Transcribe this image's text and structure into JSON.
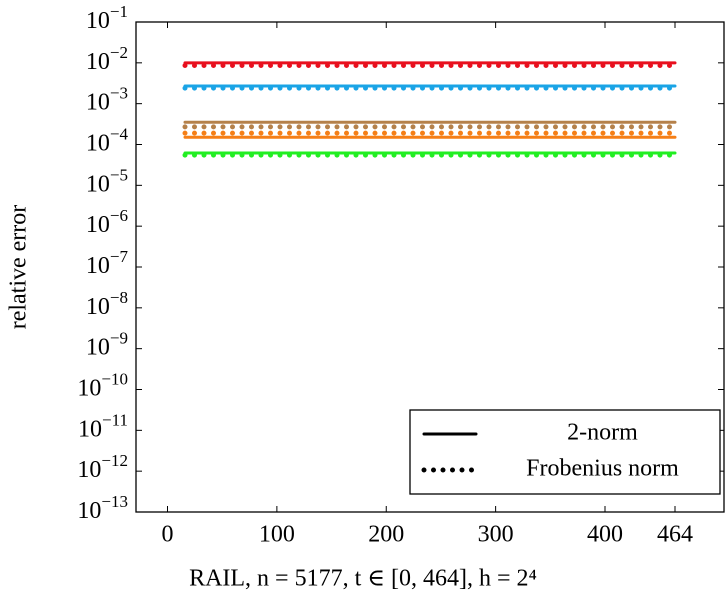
{
  "chart_data": {
    "type": "line",
    "x_label": "RAIL, n = 5177, t ∈ [0, 464], h = 2⁴",
    "y_label": "relative error",
    "log_y": true,
    "xlim": [
      -28.8,
      508.8
    ],
    "ylim": [
      1e-13,
      0.1
    ],
    "xticks": [
      0,
      100,
      200,
      300,
      400,
      464
    ],
    "yticks": [
      {
        "value": 0.1,
        "label": "10^−1"
      },
      {
        "value": 0.01,
        "label": "10^−2"
      },
      {
        "value": 0.001,
        "label": "10^−3"
      },
      {
        "value": 0.0001,
        "label": "10^−4"
      },
      {
        "value": 1e-05,
        "label": "10^−5"
      },
      {
        "value": 1e-06,
        "label": "10^−6"
      },
      {
        "value": 1e-07,
        "label": "10^−7"
      },
      {
        "value": 1e-08,
        "label": "10^−8"
      },
      {
        "value": 1e-09,
        "label": "10^−9"
      },
      {
        "value": 1e-10,
        "label": "10^−10"
      },
      {
        "value": 1e-11,
        "label": "10^−11"
      },
      {
        "value": 1e-12,
        "label": "10^−12"
      },
      {
        "value": 1e-13,
        "label": "10^−13"
      }
    ],
    "legend_position": "lower right",
    "legend": [
      {
        "label": "2-norm",
        "style": "solid"
      },
      {
        "label": "Frobenius norm",
        "style": "dotted"
      }
    ],
    "x": [
      16,
      32,
      48,
      64,
      80,
      96,
      112,
      128,
      144,
      160,
      176,
      192,
      208,
      224,
      240,
      256,
      272,
      288,
      304,
      320,
      336,
      352,
      368,
      384,
      400,
      416,
      432,
      448,
      464
    ],
    "series": [
      {
        "color": "#e8101e",
        "style": "solid",
        "values": [
          0.01,
          0.01,
          0.01,
          0.01,
          0.01,
          0.01,
          0.01,
          0.01,
          0.01,
          0.01,
          0.01,
          0.01,
          0.01,
          0.01,
          0.01,
          0.01,
          0.01,
          0.01,
          0.01,
          0.01,
          0.01,
          0.01,
          0.01,
          0.01,
          0.01,
          0.01,
          0.01,
          0.01,
          0.01
        ]
      },
      {
        "color": "#e8101e",
        "style": "dotted",
        "values": [
          0.0086,
          0.0086,
          0.0086,
          0.0086,
          0.0086,
          0.0086,
          0.0086,
          0.0086,
          0.0086,
          0.0086,
          0.0086,
          0.0086,
          0.0086,
          0.0086,
          0.0086,
          0.0086,
          0.0086,
          0.0086,
          0.0086,
          0.0086,
          0.0086,
          0.0086,
          0.0086,
          0.0086,
          0.0086,
          0.0086,
          0.0086,
          0.0086,
          0.0086
        ]
      },
      {
        "color": "#1aa4e6",
        "style": "solid",
        "values": [
          0.0027,
          0.0027,
          0.0027,
          0.0027,
          0.0027,
          0.0027,
          0.0027,
          0.0027,
          0.0027,
          0.0027,
          0.0027,
          0.0027,
          0.0027,
          0.0027,
          0.0027,
          0.0027,
          0.0027,
          0.0027,
          0.0027,
          0.0027,
          0.0027,
          0.0027,
          0.0027,
          0.0027,
          0.0027,
          0.0027,
          0.0027,
          0.0027,
          0.0027
        ]
      },
      {
        "color": "#1aa4e6",
        "style": "dotted",
        "values": [
          0.0024,
          0.0024,
          0.0024,
          0.0024,
          0.0024,
          0.0024,
          0.0024,
          0.0024,
          0.0024,
          0.0024,
          0.0024,
          0.0024,
          0.0024,
          0.0024,
          0.0024,
          0.0024,
          0.0024,
          0.0024,
          0.0024,
          0.0024,
          0.0024,
          0.0024,
          0.0024,
          0.0024,
          0.0024,
          0.0024,
          0.0024,
          0.0024,
          0.0024
        ]
      },
      {
        "color": "#b5814a",
        "style": "solid",
        "values": [
          0.00035,
          0.00035,
          0.00035,
          0.00035,
          0.00035,
          0.00035,
          0.00035,
          0.00035,
          0.00035,
          0.00035,
          0.00035,
          0.00035,
          0.00035,
          0.00035,
          0.00035,
          0.00035,
          0.00035,
          0.00035,
          0.00035,
          0.00035,
          0.00035,
          0.00035,
          0.00035,
          0.00035,
          0.00035,
          0.00035,
          0.00035,
          0.00035,
          0.00035
        ]
      },
      {
        "color": "#b5814a",
        "style": "dotted",
        "values": [
          0.00027,
          0.00027,
          0.00027,
          0.00027,
          0.00027,
          0.00027,
          0.00027,
          0.00027,
          0.00027,
          0.00027,
          0.00027,
          0.00027,
          0.00027,
          0.00027,
          0.00027,
          0.00027,
          0.00027,
          0.00027,
          0.00027,
          0.00027,
          0.00027,
          0.00027,
          0.00027,
          0.00027,
          0.00027,
          0.00027,
          0.00027,
          0.00027,
          0.00027
        ]
      },
      {
        "color": "#f57f17",
        "style": "solid",
        "values": [
          0.00015,
          0.00015,
          0.00015,
          0.00015,
          0.00015,
          0.00015,
          0.00015,
          0.00015,
          0.00015,
          0.00015,
          0.00015,
          0.00015,
          0.00015,
          0.00015,
          0.00015,
          0.00015,
          0.00015,
          0.00015,
          0.00015,
          0.00015,
          0.00015,
          0.00015,
          0.00015,
          0.00015,
          0.00015,
          0.00015,
          0.00015,
          0.00015,
          0.00015
        ]
      },
      {
        "color": "#f57f17",
        "style": "dotted",
        "values": [
          0.00019,
          0.00019,
          0.00019,
          0.00019,
          0.00019,
          0.00019,
          0.00019,
          0.00019,
          0.00019,
          0.00019,
          0.00019,
          0.00019,
          0.00019,
          0.00019,
          0.00019,
          0.00019,
          0.00019,
          0.00019,
          0.00019,
          0.00019,
          0.00019,
          0.00019,
          0.00019,
          0.00019,
          0.00019,
          0.00019,
          0.00019,
          0.00019,
          0.00019
        ]
      },
      {
        "color": "#22ee22",
        "style": "solid",
        "values": [
          6.2e-05,
          6.2e-05,
          6.2e-05,
          6.2e-05,
          6.2e-05,
          6.2e-05,
          6.2e-05,
          6.2e-05,
          6.2e-05,
          6.2e-05,
          6.2e-05,
          6.2e-05,
          6.2e-05,
          6.2e-05,
          6.2e-05,
          6.2e-05,
          6.2e-05,
          6.2e-05,
          6.2e-05,
          6.2e-05,
          6.2e-05,
          6.2e-05,
          6.2e-05,
          6.2e-05,
          6.2e-05,
          6.2e-05,
          6.2e-05,
          6.2e-05,
          6.2e-05
        ]
      },
      {
        "color": "#22ee22",
        "style": "dotted",
        "values": [
          5.5e-05,
          5.5e-05,
          5.5e-05,
          5.5e-05,
          5.5e-05,
          5.5e-05,
          5.5e-05,
          5.5e-05,
          5.5e-05,
          5.5e-05,
          5.5e-05,
          5.5e-05,
          5.5e-05,
          5.5e-05,
          5.5e-05,
          5.5e-05,
          5.5e-05,
          5.5e-05,
          5.5e-05,
          5.5e-05,
          5.5e-05,
          5.5e-05,
          5.5e-05,
          5.5e-05,
          5.5e-05,
          5.5e-05,
          5.5e-05,
          5.5e-05,
          5.5e-05
        ]
      }
    ]
  }
}
